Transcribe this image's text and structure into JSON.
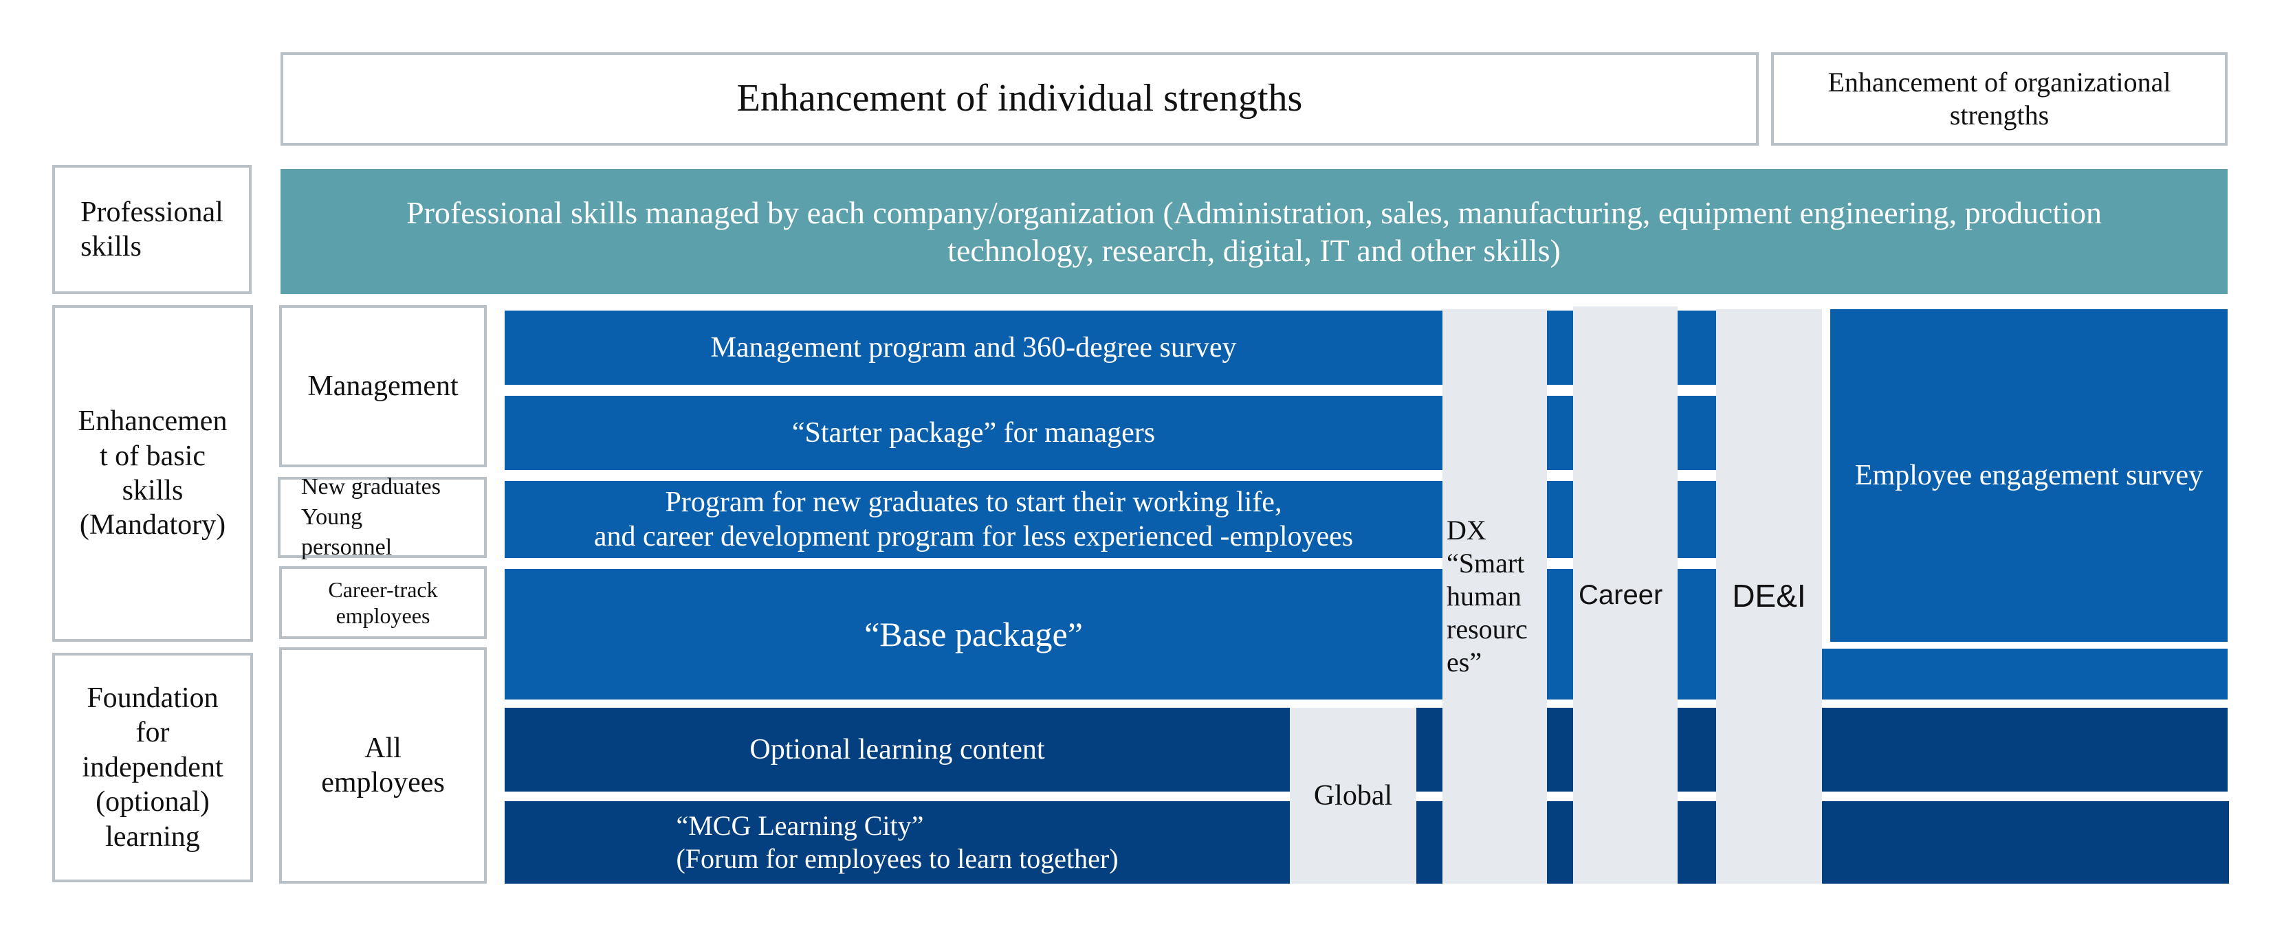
{
  "header": {
    "individual": "Enhancement of individual strengths",
    "organizational": "Enhancement of organizational\nstrengths"
  },
  "rows": {
    "professional": "Professional\nskills",
    "basic": "Enhancemen\nt of basic\nskills\n(Mandatory)",
    "foundation": "Foundation\nfor\nindependent\n(optional)\nlearning"
  },
  "professional_banner": "Professional skills managed by each company/organization (Administration, sales, manufacturing, equipment engineering, production\ntechnology, research, digital, IT and other skills)",
  "targets": {
    "management": "Management",
    "new_graduates": "New graduates\nYoung\npersonnel",
    "career_track": "Career-track\nemployees",
    "all_employees": "All\nemployees"
  },
  "programs": {
    "management_program": "Management program and 360-degree survey",
    "starter_package": "“Starter package” for managers",
    "new_graduates_program": "Program for new graduates to start their working life,\nand career development program for less experienced -employees",
    "base_package": "“Base package”",
    "optional_content": "Optional learning content",
    "learning_city": "“MCG Learning City”\n(Forum for employees to learn together)"
  },
  "columns": {
    "global": "Global",
    "dx": "DX\n“Smart\nhuman\nresourc\nes”",
    "career": "Career",
    "dei": "DE&I",
    "engagement": "Employee engagement survey"
  },
  "colors": {
    "teal": "#5ba0ab",
    "blue": "#0a5fad",
    "navy": "#04407f",
    "grey": "#e6e9ee",
    "outline": "#b9c1c7"
  }
}
